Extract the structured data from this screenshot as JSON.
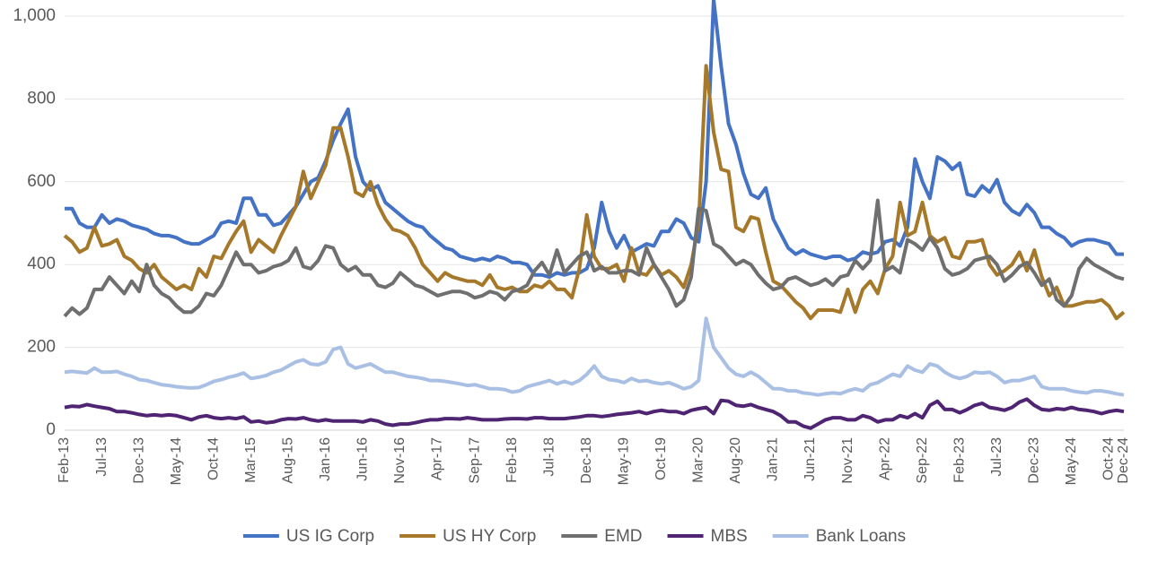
{
  "chart_data": {
    "type": "line",
    "categories": [
      "Feb-13",
      null,
      null,
      null,
      null,
      "Jul-13",
      null,
      null,
      null,
      null,
      "Dec-13",
      null,
      null,
      null,
      null,
      "May-14",
      null,
      null,
      null,
      null,
      "Oct-14",
      null,
      null,
      null,
      null,
      "Mar-15",
      null,
      null,
      null,
      null,
      "Aug-15",
      null,
      null,
      null,
      null,
      "Jan-16",
      null,
      null,
      null,
      null,
      "Jun-16",
      null,
      null,
      null,
      null,
      "Nov-16",
      null,
      null,
      null,
      null,
      "Apr-17",
      null,
      null,
      null,
      null,
      "Sep-17",
      null,
      null,
      null,
      null,
      "Feb-18",
      null,
      null,
      null,
      null,
      "Jul-18",
      null,
      null,
      null,
      null,
      "Dec-18",
      null,
      null,
      null,
      null,
      "May-19",
      null,
      null,
      null,
      null,
      "Oct-19",
      null,
      null,
      null,
      null,
      "Mar-20",
      null,
      null,
      null,
      null,
      "Aug-20",
      null,
      null,
      null,
      null,
      "Jan-21",
      null,
      null,
      null,
      null,
      "Jun-21",
      null,
      null,
      null,
      null,
      "Nov-21",
      null,
      null,
      null,
      null,
      "Apr-22",
      null,
      null,
      null,
      null,
      "Sep-22",
      null,
      null,
      null,
      null,
      "Feb-23",
      null,
      null,
      null,
      null,
      "Jul-23",
      null,
      null,
      null,
      null,
      "Dec-23",
      null,
      null,
      null,
      null,
      "May-24",
      null,
      null,
      null,
      null,
      "Oct-24",
      null,
      "Dec-24"
    ],
    "series": [
      {
        "name": "US IG Corp",
        "color": "#4472c4",
        "values": [
          535,
          535,
          500,
          490,
          490,
          520,
          500,
          510,
          505,
          495,
          490,
          485,
          475,
          470,
          470,
          465,
          455,
          450,
          450,
          460,
          470,
          500,
          505,
          500,
          560,
          560,
          520,
          520,
          495,
          500,
          520,
          540,
          570,
          600,
          610,
          650,
          700,
          740,
          775,
          660,
          600,
          580,
          590,
          550,
          535,
          520,
          505,
          495,
          490,
          470,
          455,
          440,
          435,
          420,
          415,
          410,
          415,
          410,
          420,
          415,
          405,
          405,
          400,
          375,
          375,
          370,
          380,
          375,
          380,
          380,
          390,
          440,
          550,
          480,
          440,
          470,
          430,
          440,
          450,
          445,
          480,
          480,
          510,
          500,
          465,
          455,
          600,
          1040,
          880,
          740,
          690,
          620,
          570,
          560,
          585,
          510,
          475,
          440,
          425,
          435,
          425,
          420,
          415,
          420,
          420,
          410,
          415,
          430,
          425,
          430,
          455,
          460,
          445,
          490,
          655,
          600,
          560,
          660,
          650,
          630,
          645,
          570,
          565,
          590,
          575,
          605,
          550,
          530,
          520,
          545,
          525,
          490,
          490,
          475,
          465,
          445,
          455,
          460,
          460,
          455,
          450,
          425,
          425
        ]
      },
      {
        "name": "US HY Corp",
        "color": "#a5782a",
        "values": [
          470,
          455,
          430,
          440,
          490,
          445,
          450,
          460,
          420,
          410,
          390,
          380,
          400,
          370,
          355,
          340,
          350,
          340,
          390,
          370,
          420,
          415,
          450,
          480,
          505,
          430,
          460,
          445,
          430,
          470,
          505,
          540,
          625,
          560,
          600,
          640,
          730,
          730,
          660,
          575,
          565,
          600,
          545,
          510,
          485,
          480,
          470,
          440,
          400,
          380,
          360,
          380,
          370,
          365,
          360,
          360,
          350,
          375,
          345,
          340,
          345,
          335,
          335,
          350,
          345,
          360,
          340,
          340,
          320,
          390,
          520,
          420,
          390,
          390,
          400,
          360,
          440,
          380,
          375,
          400,
          375,
          385,
          370,
          345,
          400,
          500,
          880,
          720,
          630,
          625,
          490,
          480,
          515,
          510,
          430,
          360,
          350,
          330,
          310,
          295,
          270,
          290,
          290,
          290,
          285,
          340,
          285,
          340,
          360,
          330,
          390,
          420,
          550,
          470,
          480,
          550,
          470,
          455,
          465,
          420,
          415,
          455,
          455,
          460,
          400,
          375,
          385,
          400,
          430,
          385,
          435,
          370,
          325,
          345,
          300,
          300,
          305,
          310,
          310,
          315,
          300,
          270,
          285
        ]
      },
      {
        "name": "EMD",
        "color": "#6f6f6f",
        "values": [
          275,
          295,
          280,
          295,
          340,
          340,
          370,
          350,
          330,
          360,
          335,
          400,
          350,
          330,
          320,
          300,
          285,
          285,
          300,
          330,
          325,
          350,
          390,
          430,
          400,
          400,
          380,
          385,
          395,
          400,
          410,
          440,
          395,
          390,
          410,
          445,
          440,
          400,
          385,
          395,
          375,
          375,
          350,
          345,
          355,
          380,
          365,
          350,
          345,
          335,
          325,
          330,
          335,
          335,
          330,
          320,
          325,
          335,
          330,
          315,
          335,
          340,
          350,
          385,
          405,
          375,
          435,
          380,
          400,
          420,
          430,
          385,
          395,
          380,
          380,
          385,
          385,
          375,
          440,
          400,
          370,
          340,
          300,
          315,
          370,
          535,
          530,
          450,
          440,
          420,
          400,
          410,
          400,
          375,
          355,
          340,
          345,
          365,
          370,
          360,
          350,
          355,
          365,
          350,
          370,
          375,
          410,
          390,
          410,
          555,
          385,
          395,
          380,
          460,
          450,
          435,
          465,
          440,
          390,
          375,
          380,
          390,
          410,
          415,
          420,
          400,
          360,
          375,
          395,
          405,
          380,
          350,
          365,
          315,
          300,
          325,
          390,
          415,
          400,
          390,
          380,
          370,
          365
        ]
      },
      {
        "name": "MBS",
        "color": "#4e2473",
        "values": [
          55,
          58,
          57,
          62,
          58,
          55,
          52,
          45,
          45,
          42,
          38,
          35,
          37,
          35,
          37,
          35,
          30,
          25,
          32,
          35,
          30,
          28,
          30,
          28,
          32,
          20,
          22,
          18,
          20,
          25,
          28,
          27,
          30,
          25,
          22,
          25,
          22,
          22,
          22,
          22,
          20,
          25,
          22,
          15,
          12,
          15,
          15,
          18,
          22,
          25,
          25,
          28,
          28,
          27,
          30,
          28,
          25,
          25,
          25,
          27,
          28,
          28,
          27,
          30,
          30,
          28,
          28,
          28,
          30,
          32,
          35,
          35,
          33,
          35,
          38,
          40,
          42,
          45,
          40,
          45,
          48,
          45,
          45,
          40,
          48,
          52,
          55,
          40,
          72,
          70,
          60,
          58,
          62,
          55,
          50,
          45,
          35,
          20,
          20,
          10,
          5,
          15,
          25,
          30,
          30,
          25,
          25,
          35,
          30,
          20,
          25,
          25,
          35,
          30,
          40,
          30,
          60,
          70,
          50,
          50,
          42,
          50,
          60,
          65,
          55,
          52,
          48,
          55,
          68,
          75,
          60,
          50,
          48,
          52,
          50,
          55,
          50,
          48,
          45,
          40,
          45,
          48,
          45
        ]
      },
      {
        "name": "Bank Loans",
        "color": "#a9c0e4",
        "values": [
          140,
          142,
          140,
          138,
          150,
          140,
          140,
          142,
          135,
          130,
          122,
          120,
          115,
          110,
          108,
          105,
          103,
          102,
          103,
          110,
          118,
          122,
          128,
          132,
          138,
          125,
          128,
          132,
          140,
          145,
          155,
          165,
          170,
          160,
          158,
          165,
          195,
          200,
          160,
          150,
          155,
          160,
          150,
          140,
          140,
          135,
          130,
          128,
          125,
          120,
          120,
          118,
          115,
          112,
          108,
          110,
          105,
          100,
          100,
          98,
          92,
          95,
          105,
          110,
          115,
          120,
          112,
          118,
          112,
          120,
          135,
          155,
          130,
          122,
          120,
          115,
          125,
          118,
          120,
          115,
          112,
          115,
          108,
          100,
          105,
          120,
          270,
          200,
          175,
          150,
          135,
          130,
          140,
          130,
          115,
          100,
          100,
          95,
          95,
          90,
          88,
          85,
          88,
          90,
          88,
          95,
          100,
          95,
          110,
          115,
          125,
          135,
          130,
          155,
          145,
          140,
          160,
          155,
          140,
          130,
          125,
          130,
          140,
          138,
          140,
          130,
          115,
          120,
          120,
          125,
          130,
          105,
          100,
          100,
          100,
          95,
          92,
          90,
          95,
          95,
          92,
          88,
          85
        ]
      }
    ],
    "ylim": [
      0,
      1000
    ],
    "yticks": [
      0,
      200,
      400,
      600,
      800,
      {
        "value": 1000,
        "label": "1,000"
      }
    ],
    "grid": true,
    "legend": "bottom"
  }
}
